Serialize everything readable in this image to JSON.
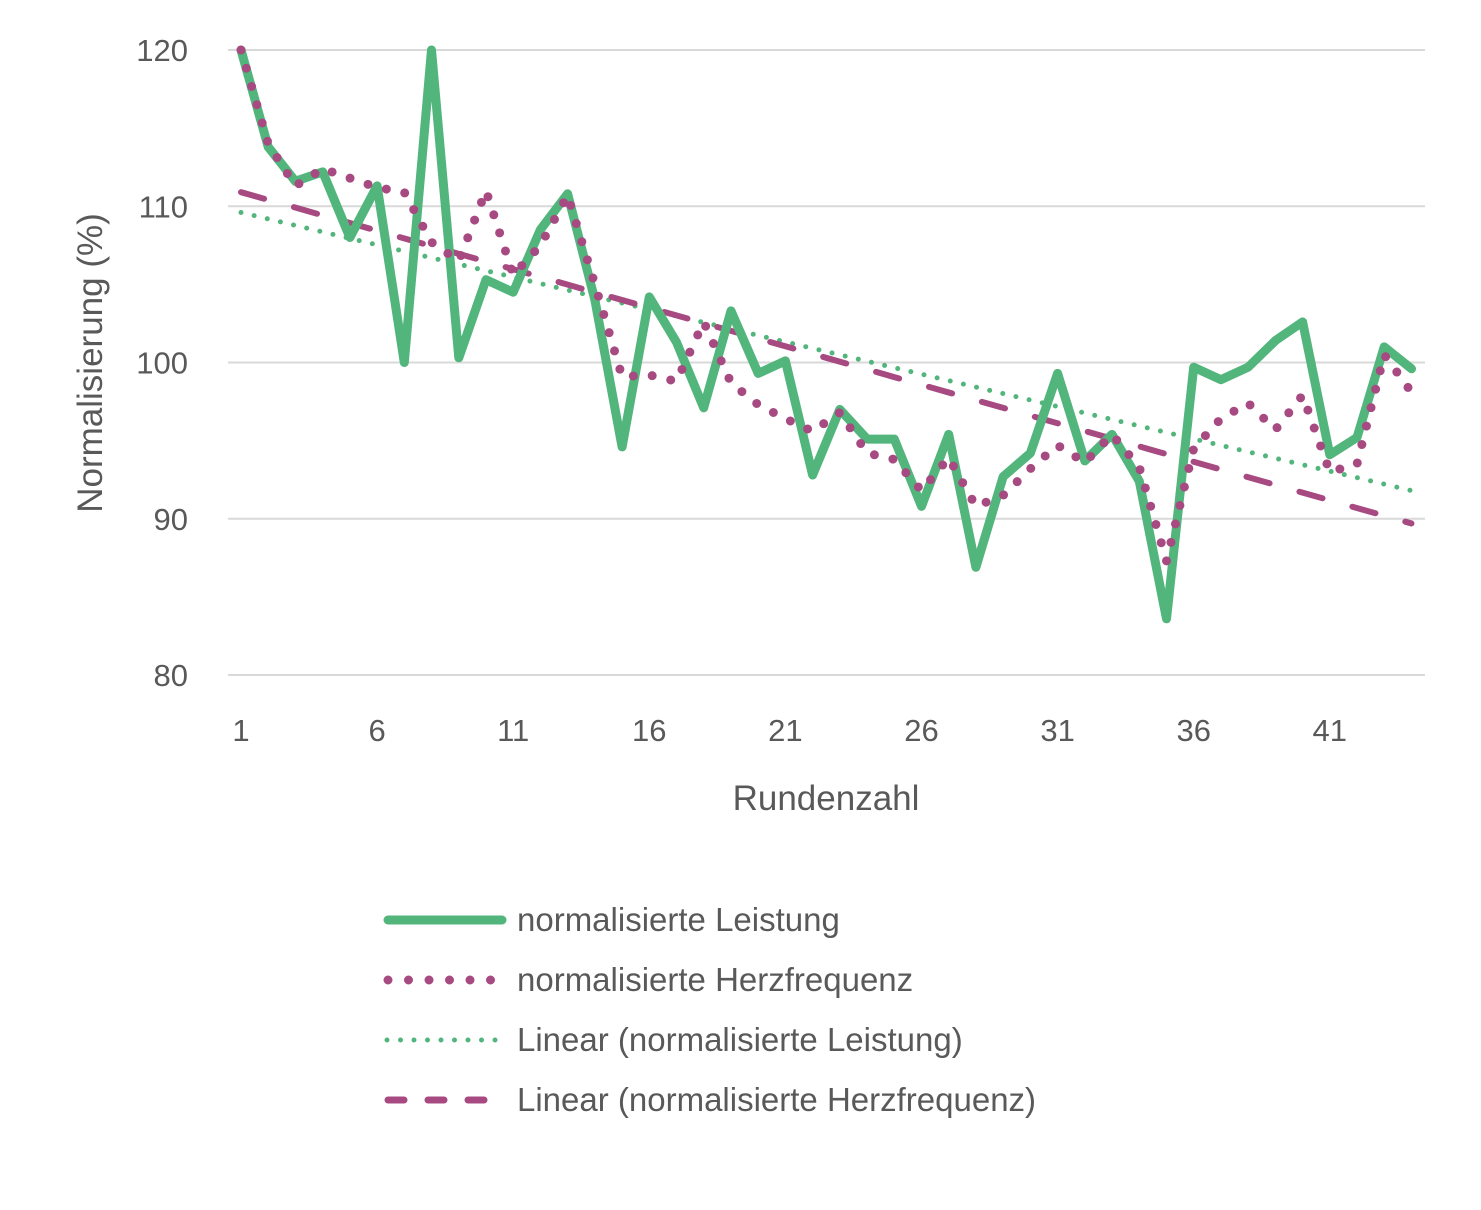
{
  "chart_data": {
    "type": "line",
    "title": "",
    "xlabel": "Rundenzahl",
    "ylabel": "Normalisierung (%)",
    "ylim": [
      80,
      120
    ],
    "yticks": [
      80,
      90,
      100,
      110,
      120
    ],
    "xticks": [
      1,
      6,
      11,
      16,
      21,
      26,
      31,
      36,
      41
    ],
    "grid": "horizontal",
    "legend_position": "bottom",
    "x": [
      1,
      2,
      3,
      4,
      5,
      6,
      7,
      8,
      9,
      10,
      11,
      12,
      13,
      14,
      15,
      16,
      17,
      18,
      19,
      20,
      21,
      22,
      23,
      24,
      25,
      26,
      27,
      28,
      29,
      30,
      31,
      32,
      33,
      34,
      35,
      36,
      37,
      38,
      39,
      40,
      41,
      42,
      43,
      44
    ],
    "series": [
      {
        "name": "normalisierte Leistung",
        "style": "solid",
        "color": "#52B57C",
        "values": [
          120,
          113.8,
          111.6,
          112.2,
          108,
          111.3,
          100,
          120,
          100.3,
          105.3,
          104.5,
          108.5,
          110.8,
          104,
          94.6,
          104.2,
          101.3,
          97.1,
          103.3,
          99.3,
          100.1,
          92.8,
          97,
          95.1,
          95.1,
          90.8,
          95.4,
          86.9,
          92.7,
          94.2,
          99.3,
          93.7,
          95.4,
          92.4,
          83.6,
          99.7,
          98.9,
          99.7,
          101.4,
          102.6,
          94.1,
          95.2,
          101,
          99.6
        ]
      },
      {
        "name": "normalisierte Herzfrequenz",
        "style": "round-dot",
        "color": "#A84A82",
        "values": [
          120,
          114,
          111.3,
          112.4,
          111.8,
          111.2,
          110.9,
          107.7,
          106.5,
          111,
          105.6,
          107.5,
          110.7,
          105,
          99.1,
          99.2,
          98.8,
          102.6,
          98.7,
          97.3,
          96.4,
          95.6,
          96.8,
          94.2,
          93.8,
          91.8,
          93.9,
          90.8,
          91.5,
          93.2,
          94.7,
          93.6,
          95.4,
          93.3,
          87.3,
          94.5,
          96.4,
          97.4,
          95.7,
          97.9,
          93,
          93.5,
          100.5,
          98.1
        ]
      },
      {
        "name": "Linear (normalisierte Leistung)",
        "style": "small-dot",
        "color": "#52B57C",
        "trend_start": 109.6,
        "trend_end": 91.8
      },
      {
        "name": "Linear (normalisierte Herzfrequenz)",
        "style": "dash",
        "color": "#A84A82",
        "trend_start": 110.9,
        "trend_end": 89.7
      }
    ]
  },
  "legend": {
    "items": [
      {
        "label": "normalisierte Leistung"
      },
      {
        "label": "normalisierte Herzfrequenz"
      },
      {
        "label": "Linear (normalisierte Leistung)"
      },
      {
        "label": "Linear (normalisierte Herzfrequenz)"
      }
    ]
  },
  "colors": {
    "green": "#52B57C",
    "purple": "#A84A82",
    "grid": "#D9D9D9",
    "text": "#595959"
  }
}
